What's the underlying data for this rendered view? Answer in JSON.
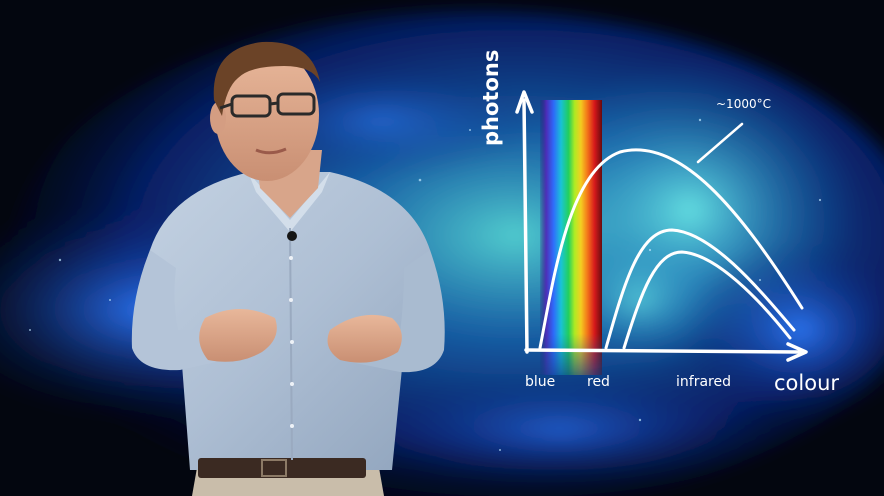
{
  "diagram": {
    "y_axis_label": "photons",
    "x_axis_label": "colour",
    "curve_label": "~1000°C",
    "x_region_labels": {
      "blue": "blue",
      "red": "red",
      "infrared": "infrared"
    },
    "curves": 3,
    "spectrum_band_colors": [
      "#2a1a6e",
      "#4f2ab8",
      "#2f6bff",
      "#19c7d9",
      "#22d45a",
      "#b7f21c",
      "#ffd21a",
      "#ff7a12",
      "#e01414",
      "#6b0606"
    ]
  },
  "scene": {
    "background": "blue nebula",
    "presenter": "man in light blue shirt with glasses"
  }
}
